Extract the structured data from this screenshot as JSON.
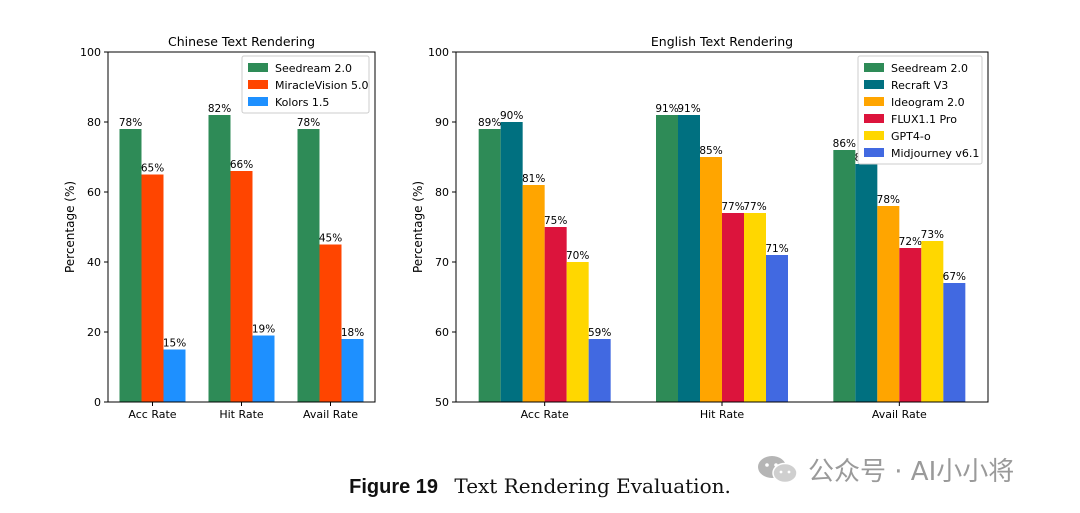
{
  "chart_data": [
    {
      "type": "bar",
      "title": "Chinese Text Rendering",
      "ylabel": "Percentage (%)",
      "xlabel": "",
      "ylim": [
        0,
        100
      ],
      "yticks": [
        0,
        20,
        40,
        60,
        80,
        100
      ],
      "categories": [
        "Acc Rate",
        "Hit Rate",
        "Avail Rate"
      ],
      "legend_position": "top-right",
      "series": [
        {
          "name": "Seedream 2.0",
          "color": "#2e8b57",
          "values": [
            78,
            82,
            78
          ]
        },
        {
          "name": "MiracleVision 5.0",
          "color": "#ff4500",
          "values": [
            65,
            66,
            45
          ]
        },
        {
          "name": "Kolors 1.5",
          "color": "#1e90ff",
          "values": [
            15,
            19,
            18
          ]
        }
      ]
    },
    {
      "type": "bar",
      "title": "English Text Rendering",
      "ylabel": "Percentage (%)",
      "xlabel": "",
      "ylim": [
        50,
        100
      ],
      "yticks": [
        50,
        60,
        70,
        80,
        90,
        100
      ],
      "categories": [
        "Acc Rate",
        "Hit Rate",
        "Avail Rate"
      ],
      "legend_position": "top-right",
      "series": [
        {
          "name": "Seedream 2.0",
          "color": "#2e8b57",
          "values": [
            89,
            91,
            86
          ]
        },
        {
          "name": "Recraft V3",
          "color": "#007080",
          "values": [
            90,
            91,
            84
          ]
        },
        {
          "name": "Ideogram 2.0",
          "color": "#ffa500",
          "values": [
            81,
            85,
            78
          ]
        },
        {
          "name": "FLUX1.1 Pro",
          "color": "#dc143c",
          "values": [
            75,
            77,
            72
          ]
        },
        {
          "name": "GPT4-o",
          "color": "#ffd700",
          "values": [
            70,
            77,
            73
          ]
        },
        {
          "name": "Midjourney v6.1",
          "color": "#4169e1",
          "values": [
            59,
            71,
            67
          ]
        }
      ]
    }
  ],
  "caption": {
    "label": "Figure 19",
    "text": "Text Rendering Evaluation."
  },
  "watermark": {
    "text": "公众号 · AI小小将"
  }
}
